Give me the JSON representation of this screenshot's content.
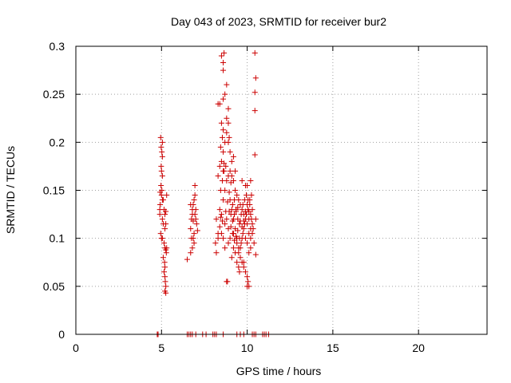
{
  "chart_data": {
    "type": "scatter",
    "title": "Day 043 of 2023, SRMTID for receiver bur2",
    "xlabel": "GPS time / hours",
    "ylabel": "SRMTID / TECUs",
    "xlim": [
      0,
      24
    ],
    "ylim": [
      0,
      0.3
    ],
    "xticks": [
      0,
      5,
      10,
      15,
      20
    ],
    "yticks": [
      0,
      0.05,
      0.1,
      0.15,
      0.2,
      0.25,
      0.3
    ],
    "grid": true,
    "marker": "plus",
    "color": "#cc0000",
    "points": [
      [
        4.75,
        0
      ],
      [
        4.8,
        0
      ],
      [
        6.5,
        0
      ],
      [
        6.6,
        0
      ],
      [
        6.7,
        0
      ],
      [
        6.8,
        0
      ],
      [
        7.0,
        0
      ],
      [
        7.4,
        0
      ],
      [
        7.6,
        0
      ],
      [
        8.0,
        0
      ],
      [
        8.1,
        0
      ],
      [
        8.2,
        0
      ],
      [
        8.6,
        0
      ],
      [
        9.4,
        0
      ],
      [
        9.6,
        0
      ],
      [
        9.8,
        0
      ],
      [
        10.3,
        0
      ],
      [
        10.4,
        0
      ],
      [
        10.5,
        0
      ],
      [
        10.9,
        0
      ],
      [
        11.0,
        0
      ],
      [
        11.1,
        0
      ],
      [
        11.25,
        0
      ],
      [
        4.95,
        0.205
      ],
      [
        5.05,
        0.2
      ],
      [
        4.98,
        0.195
      ],
      [
        5.02,
        0.19
      ],
      [
        5.05,
        0.185
      ],
      [
        4.98,
        0.175
      ],
      [
        5.0,
        0.17
      ],
      [
        5.05,
        0.165
      ],
      [
        4.97,
        0.155
      ],
      [
        5.02,
        0.15
      ],
      [
        5.0,
        0.145
      ],
      [
        5.05,
        0.14
      ],
      [
        4.92,
        0.148
      ],
      [
        5.1,
        0.14
      ],
      [
        4.9,
        0.13
      ],
      [
        5.15,
        0.13
      ],
      [
        5.2,
        0.125
      ],
      [
        5.25,
        0.128
      ],
      [
        4.9,
        0.125
      ],
      [
        5.05,
        0.12
      ],
      [
        5.1,
        0.115
      ],
      [
        5.2,
        0.11
      ],
      [
        4.95,
        0.105
      ],
      [
        5.0,
        0.1
      ],
      [
        5.05,
        0.1
      ],
      [
        5.15,
        0.095
      ],
      [
        5.2,
        0.09
      ],
      [
        5.25,
        0.088
      ],
      [
        5.28,
        0.085
      ],
      [
        5.1,
        0.08
      ],
      [
        5.18,
        0.075
      ],
      [
        5.2,
        0.07
      ],
      [
        5.15,
        0.065
      ],
      [
        5.2,
        0.06
      ],
      [
        5.22,
        0.055
      ],
      [
        5.25,
        0.05
      ],
      [
        5.2,
        0.045
      ],
      [
        5.25,
        0.043
      ],
      [
        5.3,
        0.145
      ],
      [
        4.92,
        0.135
      ],
      [
        5.25,
        0.115
      ],
      [
        5.3,
        0.09
      ],
      [
        6.5,
        0.078
      ],
      [
        6.7,
        0.085
      ],
      [
        6.8,
        0.09
      ],
      [
        6.85,
        0.1
      ],
      [
        6.7,
        0.11
      ],
      [
        6.75,
        0.12
      ],
      [
        6.8,
        0.13
      ],
      [
        6.85,
        0.135
      ],
      [
        6.7,
        0.135
      ],
      [
        6.9,
        0.14
      ],
      [
        6.95,
        0.145
      ],
      [
        6.95,
        0.155
      ],
      [
        6.8,
        0.125
      ],
      [
        6.9,
        0.105
      ],
      [
        7.05,
        0.115
      ],
      [
        7.0,
        0.12
      ],
      [
        6.9,
        0.095
      ],
      [
        7.0,
        0.13
      ],
      [
        6.75,
        0.1
      ],
      [
        6.85,
        0.118
      ],
      [
        7.1,
        0.108
      ],
      [
        6.95,
        0.125
      ],
      [
        8.15,
        0.095
      ],
      [
        8.2,
        0.085
      ],
      [
        8.3,
        0.1
      ],
      [
        8.5,
        0.105
      ],
      [
        8.6,
        0.1
      ],
      [
        8.7,
        0.09
      ],
      [
        8.9,
        0.095
      ],
      [
        8.2,
        0.12
      ],
      [
        8.4,
        0.13
      ],
      [
        8.5,
        0.125
      ],
      [
        8.6,
        0.14
      ],
      [
        8.7,
        0.15
      ],
      [
        8.8,
        0.16
      ],
      [
        8.9,
        0.165
      ],
      [
        9.0,
        0.17
      ],
      [
        9.1,
        0.165
      ],
      [
        9.2,
        0.16
      ],
      [
        9.3,
        0.15
      ],
      [
        9.4,
        0.145
      ],
      [
        9.5,
        0.14
      ],
      [
        9.6,
        0.135
      ],
      [
        9.7,
        0.13
      ],
      [
        9.8,
        0.125
      ],
      [
        9.9,
        0.12
      ],
      [
        10.0,
        0.115
      ],
      [
        10.1,
        0.12
      ],
      [
        10.2,
        0.125
      ],
      [
        10.3,
        0.13
      ],
      [
        8.3,
        0.165
      ],
      [
        8.4,
        0.175
      ],
      [
        8.5,
        0.18
      ],
      [
        8.6,
        0.19
      ],
      [
        8.7,
        0.2
      ],
      [
        8.8,
        0.21
      ],
      [
        8.9,
        0.22
      ],
      [
        8.3,
        0.24
      ],
      [
        8.4,
        0.24
      ],
      [
        8.6,
        0.245
      ],
      [
        8.7,
        0.25
      ],
      [
        8.8,
        0.26
      ],
      [
        8.6,
        0.275
      ],
      [
        8.6,
        0.283
      ],
      [
        8.5,
        0.29
      ],
      [
        8.65,
        0.293
      ],
      [
        9.0,
        0.14
      ],
      [
        9.1,
        0.13
      ],
      [
        9.2,
        0.12
      ],
      [
        9.3,
        0.11
      ],
      [
        9.4,
        0.1
      ],
      [
        9.5,
        0.09
      ],
      [
        9.6,
        0.08
      ],
      [
        9.7,
        0.075
      ],
      [
        9.8,
        0.07
      ],
      [
        9.9,
        0.065
      ],
      [
        10.0,
        0.06
      ],
      [
        10.05,
        0.055
      ],
      [
        10.0,
        0.05
      ],
      [
        10.1,
        0.05
      ],
      [
        9.3,
        0.085
      ],
      [
        9.4,
        0.075
      ],
      [
        9.5,
        0.07
      ],
      [
        9.55,
        0.065
      ],
      [
        9.6,
        0.09
      ],
      [
        9.7,
        0.1
      ],
      [
        9.8,
        0.11
      ],
      [
        9.9,
        0.1
      ],
      [
        10.0,
        0.095
      ],
      [
        10.1,
        0.105
      ],
      [
        10.2,
        0.11
      ],
      [
        10.3,
        0.115
      ],
      [
        8.8,
        0.055
      ],
      [
        8.85,
        0.055
      ],
      [
        9.1,
        0.08
      ],
      [
        9.2,
        0.09
      ],
      [
        9.0,
        0.1
      ],
      [
        8.9,
        0.11
      ],
      [
        8.8,
        0.12
      ],
      [
        8.7,
        0.115
      ],
      [
        9.05,
        0.125
      ],
      [
        9.15,
        0.135
      ],
      [
        9.25,
        0.14
      ],
      [
        9.35,
        0.13
      ],
      [
        9.45,
        0.12
      ],
      [
        9.55,
        0.115
      ],
      [
        9.65,
        0.125
      ],
      [
        9.75,
        0.135
      ],
      [
        9.85,
        0.14
      ],
      [
        9.95,
        0.145
      ],
      [
        10.05,
        0.14
      ],
      [
        10.15,
        0.135
      ],
      [
        10.25,
        0.12
      ],
      [
        10.35,
        0.11
      ],
      [
        9.2,
        0.185
      ],
      [
        9.0,
        0.19
      ],
      [
        9.1,
        0.18
      ],
      [
        9.3,
        0.17
      ],
      [
        8.45,
        0.15
      ],
      [
        8.55,
        0.16
      ],
      [
        8.65,
        0.17
      ],
      [
        8.75,
        0.175
      ],
      [
        9.7,
        0.16
      ],
      [
        9.9,
        0.155
      ],
      [
        10.0,
        0.155
      ],
      [
        10.2,
        0.16
      ],
      [
        9.4,
        0.095
      ],
      [
        9.5,
        0.085
      ],
      [
        9.2,
        0.105
      ],
      [
        9.8,
        0.075
      ],
      [
        10.1,
        0.085
      ],
      [
        10.2,
        0.09
      ],
      [
        10.4,
        0.095
      ],
      [
        10.5,
        0.083
      ],
      [
        10.5,
        0.12
      ],
      [
        10.45,
        0.187
      ],
      [
        10.45,
        0.233
      ],
      [
        10.45,
        0.252
      ],
      [
        10.5,
        0.267
      ],
      [
        10.45,
        0.293
      ],
      [
        8.3,
        0.105
      ],
      [
        8.4,
        0.112
      ],
      [
        8.45,
        0.122
      ],
      [
        8.55,
        0.118
      ],
      [
        8.75,
        0.128
      ],
      [
        8.85,
        0.138
      ],
      [
        8.95,
        0.148
      ],
      [
        9.05,
        0.158
      ],
      [
        9.15,
        0.105
      ],
      [
        9.25,
        0.098
      ],
      [
        9.35,
        0.102
      ],
      [
        9.45,
        0.108
      ],
      [
        9.55,
        0.1
      ],
      [
        9.65,
        0.095
      ],
      [
        9.75,
        0.105
      ],
      [
        9.85,
        0.115
      ],
      [
        9.95,
        0.125
      ],
      [
        10.05,
        0.13
      ],
      [
        10.15,
        0.14
      ],
      [
        10.25,
        0.145
      ],
      [
        9.6,
        0.118
      ],
      [
        9.7,
        0.112
      ],
      [
        9.8,
        0.118
      ],
      [
        9.9,
        0.128
      ],
      [
        10.0,
        0.135
      ],
      [
        10.1,
        0.128
      ],
      [
        10.2,
        0.1
      ],
      [
        10.3,
        0.105
      ],
      [
        8.95,
        0.128
      ],
      [
        9.05,
        0.112
      ],
      [
        9.15,
        0.118
      ],
      [
        9.25,
        0.125
      ],
      [
        9.35,
        0.128
      ],
      [
        9.45,
        0.132
      ],
      [
        8.6,
        0.17
      ],
      [
        8.65,
        0.178
      ],
      [
        8.9,
        0.2
      ],
      [
        8.95,
        0.205
      ],
      [
        8.8,
        0.225
      ],
      [
        8.9,
        0.235
      ],
      [
        8.55,
        0.205
      ],
      [
        8.45,
        0.195
      ],
      [
        8.5,
        0.22
      ],
      [
        8.6,
        0.213
      ]
    ]
  }
}
